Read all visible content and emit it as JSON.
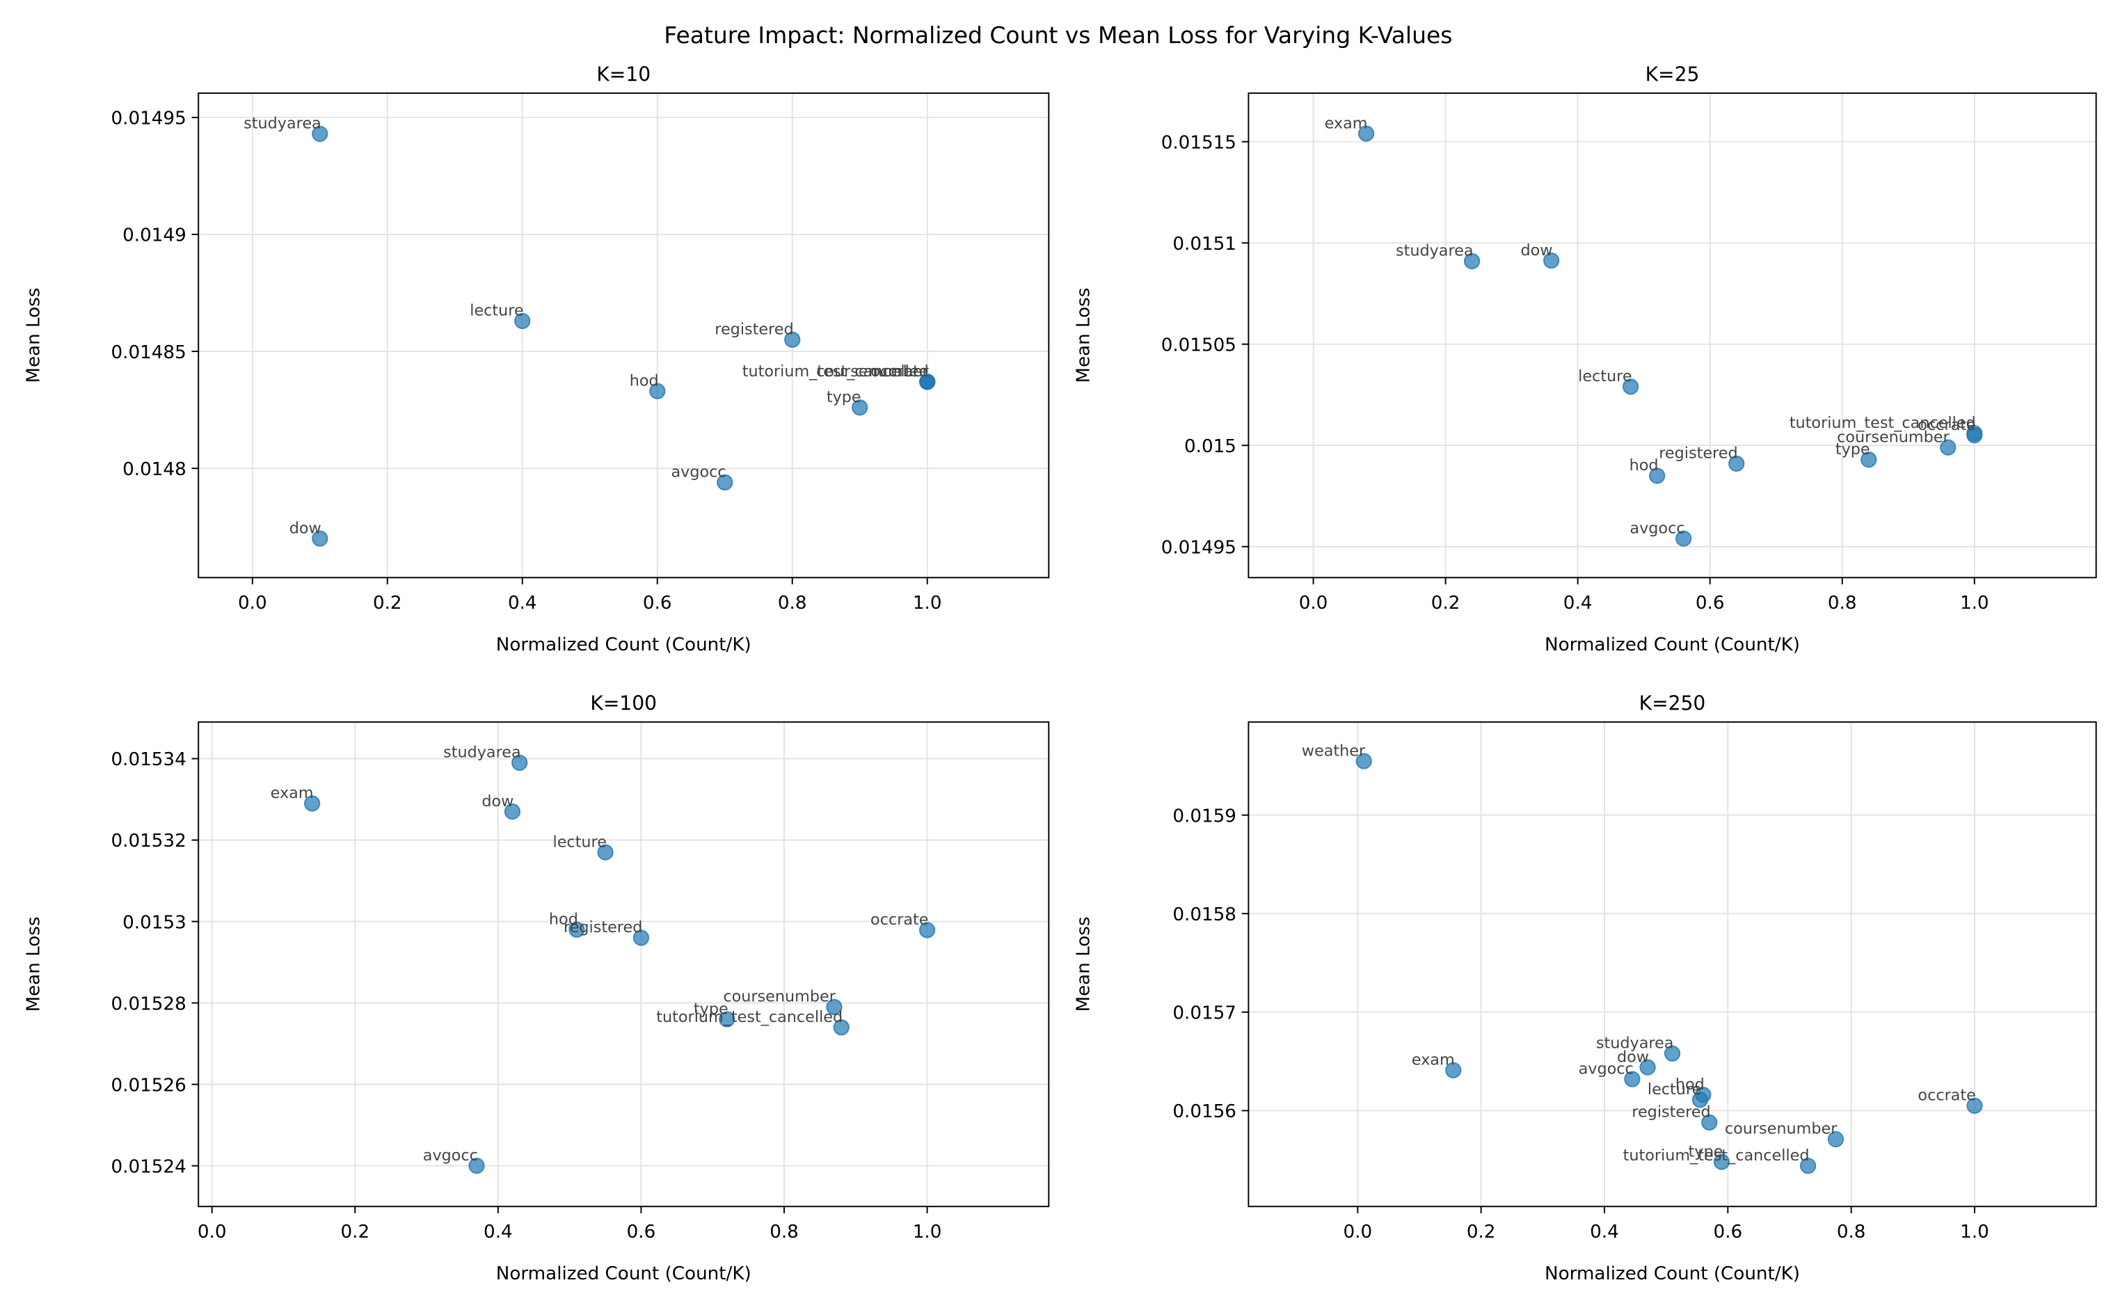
{
  "title": "Feature Impact: Normalized Count vs Mean Loss for Varying K-Values",
  "chart_data": [
    {
      "type": "scatter",
      "title": "K=10",
      "x_label": "Normalized Count (Count/K)",
      "y_label": "Mean Loss",
      "color": "#1f77b4",
      "grid": true,
      "labels": [
        "studyarea",
        "lecture",
        "registered",
        "hod",
        "tutorium_test_cancelled",
        "coursenumber",
        "occrate",
        "type",
        "avgocc",
        "dow"
      ],
      "x": [
        0.1,
        0.4,
        0.8,
        0.6,
        1.0,
        1.0,
        1.0,
        0.9,
        0.7,
        0.1
      ],
      "y": [
        0.014943,
        0.014863,
        0.014855,
        0.014833,
        0.014837,
        0.014837,
        0.014837,
        0.014826,
        0.014794,
        0.01477
      ],
      "xlim": [
        -0.08,
        1.18
      ],
      "ylim": [
        0.0147533,
        0.0149604
      ],
      "xticks": [
        {
          "value": 0.0,
          "label": "0.0"
        },
        0.2,
        0.4,
        0.6,
        0.8,
        {
          "value": 1.0,
          "label": "1.0"
        }
      ],
      "yticks": [
        0.0148,
        0.01485,
        0.0149,
        0.01495
      ]
    },
    {
      "type": "scatter",
      "title": "K=25",
      "x_label": "Normalized Count (Count/K)",
      "y_label": "Mean Loss",
      "color": "#1f77b4",
      "grid": true,
      "labels": [
        "exam",
        "studyarea",
        "dow",
        "lecture",
        "tutorium_test_cancelled",
        "occrate",
        "coursenumber",
        "type",
        "registered",
        "hod",
        "avgocc"
      ],
      "x": [
        0.08,
        0.24,
        0.36,
        0.48,
        1.0,
        1.0,
        0.96,
        0.84,
        0.64,
        0.52,
        0.56
      ],
      "y": [
        0.015154,
        0.015091,
        0.0150913,
        0.015029,
        0.015006,
        0.015005,
        0.014999,
        0.014993,
        0.014991,
        0.014985,
        0.014954
      ],
      "xlim": [
        -0.098,
        1.184
      ],
      "ylim": [
        0.0149347,
        0.015174
      ],
      "xticks": [
        {
          "value": 0.0,
          "label": "0.0"
        },
        0.2,
        0.4,
        0.6,
        0.8,
        {
          "value": 1.0,
          "label": "1.0"
        }
      ],
      "yticks": [
        0.01495,
        0.015,
        0.01505,
        0.0151,
        0.01515
      ]
    },
    {
      "type": "scatter",
      "title": "K=100",
      "x_label": "Normalized Count (Count/K)",
      "y_label": "Mean Loss",
      "color": "#1f77b4",
      "grid": true,
      "labels": [
        "studyarea",
        "exam",
        "dow",
        "lecture",
        "hod",
        "registered",
        "occrate",
        "coursenumber",
        "type",
        "tutorium_test_cancelled",
        "avgocc"
      ],
      "x": [
        0.43,
        0.14,
        0.42,
        0.55,
        0.51,
        0.6,
        1.0,
        0.87,
        0.72,
        0.88,
        0.37
      ],
      "y": [
        0.015339,
        0.015329,
        0.015327,
        0.015317,
        0.015298,
        0.015296,
        0.0152979,
        0.015279,
        0.015276,
        0.015274,
        0.01524
      ],
      "xlim": [
        -0.019,
        1.17
      ],
      "ylim": [
        0.01523,
        0.015349
      ],
      "xticks": [
        {
          "value": 0.0,
          "label": "0.0"
        },
        0.2,
        0.4,
        0.6,
        0.8,
        {
          "value": 1.0,
          "label": "1.0"
        }
      ],
      "yticks": [
        0.01524,
        0.01526,
        0.01528,
        0.0153,
        0.01532,
        0.01534
      ]
    },
    {
      "type": "scatter",
      "title": "K=250",
      "x_label": "Normalized Count (Count/K)",
      "y_label": "Mean Loss",
      "color": "#1f77b4",
      "grid": true,
      "labels": [
        "weather",
        "exam",
        "studyarea",
        "dow",
        "avgocc",
        "hod",
        "lecture",
        "registered",
        "coursenumber",
        "occrate",
        "type",
        "tutorium_test_cancelled"
      ],
      "x": [
        0.01,
        0.155,
        0.51,
        0.47,
        0.445,
        0.56,
        0.555,
        0.57,
        0.775,
        1.0,
        0.59,
        0.73
      ],
      "y": [
        0.0159548,
        0.015641,
        0.015658,
        0.015644,
        0.015632,
        0.015616,
        0.015611,
        0.015588,
        0.015571,
        0.015605,
        0.015548,
        0.015544
      ],
      "xlim": [
        -0.177,
        1.197
      ],
      "ylim": [
        0.0155027,
        0.0159945
      ],
      "xticks": [
        {
          "value": 0.0,
          "label": "0.0"
        },
        0.2,
        0.4,
        0.6,
        0.8,
        {
          "value": 1.0,
          "label": "1.0"
        }
      ],
      "yticks": [
        0.0156,
        0.0157,
        0.0158,
        0.0159
      ]
    }
  ]
}
